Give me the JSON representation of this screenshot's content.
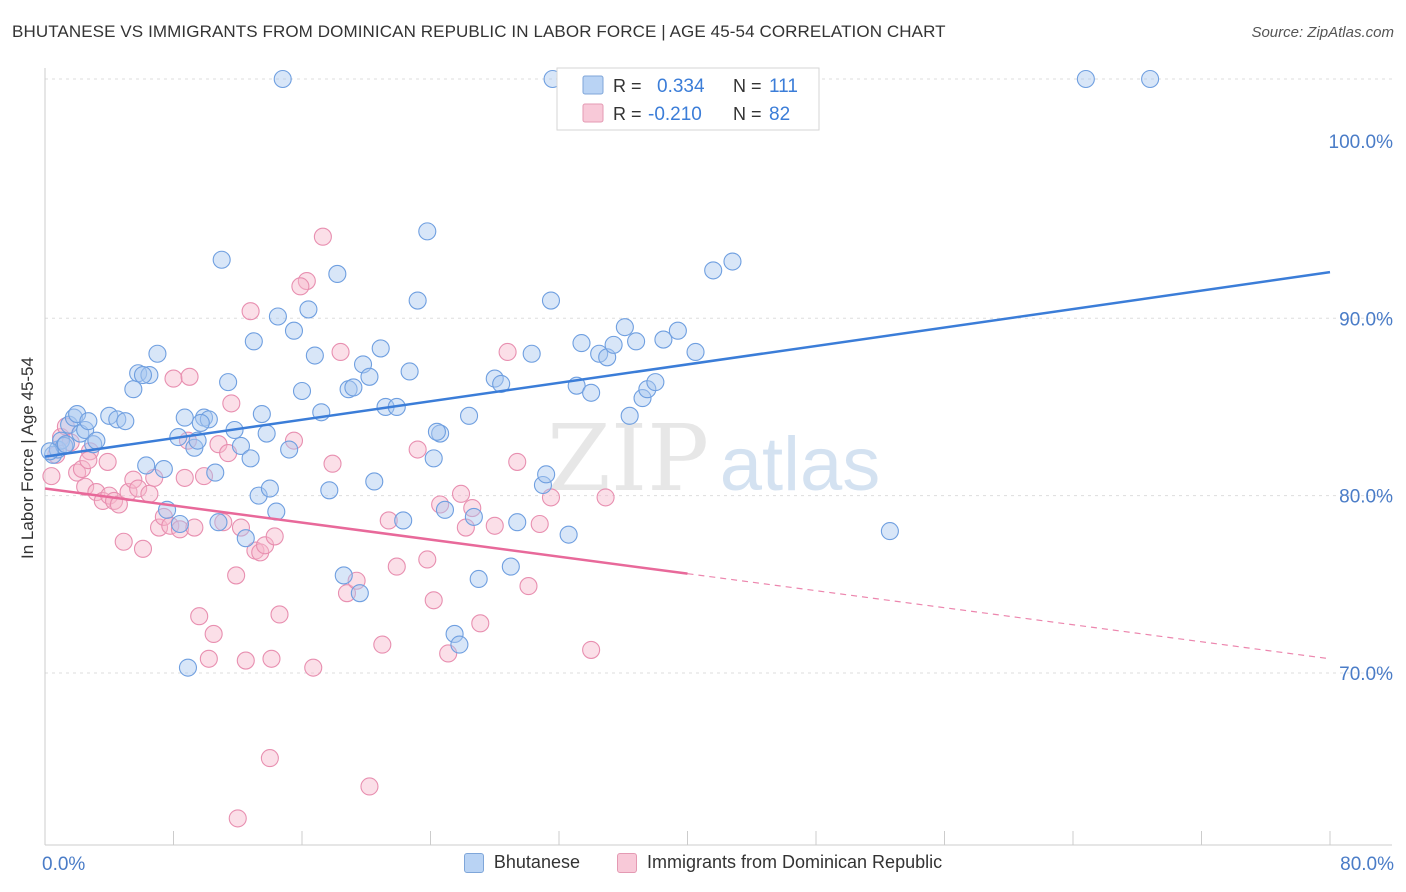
{
  "header": {
    "title": "BHUTANESE VS IMMIGRANTS FROM DOMINICAN REPUBLIC IN LABOR FORCE | AGE 45-54 CORRELATION CHART",
    "source": "Source: ZipAtlas.com"
  },
  "colors": {
    "blue": "#3b7dd8",
    "blue_fill": "#a9c8f0",
    "pink": "#e8699a",
    "pink_fill": "#f6b8cc",
    "axis_label": "#4a7cc7",
    "grid": "#dddddd"
  },
  "legend": {
    "rows": [
      {
        "r_label": "R =",
        "r_value": "0.334",
        "n_label": "N =",
        "n_value": "111",
        "color": "blue"
      },
      {
        "r_label": "R =",
        "r_value": "-0.210",
        "n_label": "N =",
        "n_value": "82",
        "color": "pink"
      }
    ]
  },
  "bottom_legend": [
    {
      "label": "Bhutanese",
      "color": "blue"
    },
    {
      "label": "Immigrants from Dominican Republic",
      "color": "pink"
    }
  ],
  "watermark": {
    "zip": "ZIP",
    "atlas": "atlas"
  },
  "chart_data": {
    "type": "scatter",
    "title": "BHUTANESE VS IMMIGRANTS FROM DOMINICAN REPUBLIC IN LABOR FORCE | AGE 45-54 CORRELATION CHART",
    "xlabel": "",
    "ylabel": "In Labor Force | Age 45-54",
    "xlim": [
      0,
      80
    ],
    "ylim": [
      60.3,
      104
    ],
    "x_tick_labels": [
      {
        "value": 0,
        "label": "0.0%"
      },
      {
        "value": 80,
        "label": "80.0%"
      }
    ],
    "y_tick_labels": [
      {
        "value": 70,
        "label": "70.0%"
      },
      {
        "value": 80,
        "label": "80.0%"
      },
      {
        "value": 90,
        "label": "90.0%"
      },
      {
        "value": 100,
        "label": "100.0%"
      }
    ],
    "grid": true,
    "legend_position": "top-center",
    "series": [
      {
        "name": "Bhutanese",
        "color": "blue",
        "r": 0.334,
        "n": 111,
        "trend": {
          "x0": 0,
          "y0": 82.2,
          "x1": 80,
          "y1": 92.6,
          "dashed_from": null
        },
        "points": [
          [
            0.5,
            82.3
          ],
          [
            0.8,
            82.6
          ],
          [
            1.0,
            83.1
          ],
          [
            1.2,
            82.8
          ],
          [
            1.3,
            82.9
          ],
          [
            1.5,
            84.0
          ],
          [
            1.8,
            84.4
          ],
          [
            2.0,
            84.6
          ],
          [
            2.2,
            83.5
          ],
          [
            2.5,
            83.7
          ],
          [
            2.7,
            84.2
          ],
          [
            3.0,
            82.9
          ],
          [
            3.2,
            83.1
          ],
          [
            4.0,
            84.5
          ],
          [
            4.5,
            84.3
          ],
          [
            5.0,
            84.2
          ],
          [
            5.5,
            86.0
          ],
          [
            5.8,
            86.9
          ],
          [
            6.5,
            86.8
          ],
          [
            7.0,
            88.0
          ],
          [
            6.3,
            81.7
          ],
          [
            7.4,
            81.5
          ],
          [
            7.6,
            79.2
          ],
          [
            8.3,
            83.3
          ],
          [
            8.4,
            78.4
          ],
          [
            8.7,
            84.4
          ],
          [
            8.9,
            70.3
          ],
          [
            9.3,
            82.7
          ],
          [
            9.5,
            83.1
          ],
          [
            9.9,
            84.4
          ],
          [
            10.2,
            84.3
          ],
          [
            10.6,
            81.3
          ],
          [
            10.8,
            78.5
          ],
          [
            11.0,
            93.3
          ],
          [
            11.4,
            86.4
          ],
          [
            11.8,
            83.7
          ],
          [
            12.2,
            82.8
          ],
          [
            12.5,
            77.6
          ],
          [
            12.8,
            82.1
          ],
          [
            13.0,
            88.7
          ],
          [
            13.3,
            80.0
          ],
          [
            13.5,
            84.6
          ],
          [
            14.0,
            80.4
          ],
          [
            14.4,
            79.1
          ],
          [
            14.5,
            90.1
          ],
          [
            14.8,
            100.6
          ],
          [
            15.2,
            82.6
          ],
          [
            15.5,
            89.3
          ],
          [
            16.0,
            85.9
          ],
          [
            16.4,
            90.5
          ],
          [
            16.8,
            87.9
          ],
          [
            17.2,
            84.7
          ],
          [
            17.7,
            80.3
          ],
          [
            18.2,
            92.5
          ],
          [
            18.6,
            75.5
          ],
          [
            18.9,
            86.0
          ],
          [
            19.2,
            86.1
          ],
          [
            19.6,
            74.5
          ],
          [
            19.8,
            87.4
          ],
          [
            20.2,
            86.7
          ],
          [
            20.5,
            80.8
          ],
          [
            20.9,
            88.3
          ],
          [
            21.2,
            85.0
          ],
          [
            21.9,
            85.0
          ],
          [
            22.3,
            78.6
          ],
          [
            22.7,
            87.0
          ],
          [
            23.2,
            91.0
          ],
          [
            23.8,
            94.9
          ],
          [
            24.2,
            82.1
          ],
          [
            24.6,
            83.5
          ],
          [
            24.9,
            79.2
          ],
          [
            25.5,
            72.2
          ],
          [
            25.8,
            71.6
          ],
          [
            26.4,
            84.5
          ],
          [
            26.7,
            78.8
          ],
          [
            27.0,
            75.3
          ],
          [
            28.0,
            86.6
          ],
          [
            28.4,
            86.3
          ],
          [
            29.0,
            76.0
          ],
          [
            29.4,
            78.5
          ],
          [
            30.3,
            88.0
          ],
          [
            31.0,
            80.6
          ],
          [
            31.2,
            81.2
          ],
          [
            31.5,
            91.0
          ],
          [
            32.6,
            77.8
          ],
          [
            33.1,
            86.2
          ],
          [
            33.4,
            88.6
          ],
          [
            34.0,
            85.8
          ],
          [
            34.5,
            88.0
          ],
          [
            35.0,
            87.8
          ],
          [
            35.4,
            88.5
          ],
          [
            36.1,
            89.5
          ],
          [
            36.4,
            84.5
          ],
          [
            36.8,
            88.7
          ],
          [
            37.2,
            85.5
          ],
          [
            37.5,
            86.0
          ],
          [
            38.0,
            86.4
          ],
          [
            38.5,
            88.8
          ],
          [
            39.4,
            89.3
          ],
          [
            40.5,
            88.1
          ],
          [
            41.6,
            92.7
          ],
          [
            42.8,
            93.2
          ],
          [
            52.6,
            78.0
          ],
          [
            31.6,
            100.6
          ],
          [
            64.8,
            100.6
          ],
          [
            68.8,
            100.6
          ],
          [
            6.1,
            86.8
          ],
          [
            9.7,
            84.1
          ],
          [
            13.8,
            83.5
          ],
          [
            24.4,
            83.6
          ],
          [
            0.3,
            82.5
          ]
        ]
      },
      {
        "name": "Immigrants from Dominican Republic",
        "color": "pink",
        "r": -0.21,
        "n": 82,
        "trend": {
          "x0": 0,
          "y0": 80.4,
          "x1": 80,
          "y1": 70.8,
          "dashed_from": 40
        },
        "points": [
          [
            0.4,
            81.1
          ],
          [
            0.7,
            82.3
          ],
          [
            1.0,
            83.3
          ],
          [
            1.3,
            83.9
          ],
          [
            1.6,
            83.0
          ],
          [
            2.0,
            81.3
          ],
          [
            2.3,
            81.5
          ],
          [
            2.5,
            80.5
          ],
          [
            2.8,
            82.5
          ],
          [
            3.2,
            80.2
          ],
          [
            3.6,
            79.7
          ],
          [
            4.0,
            80.0
          ],
          [
            4.3,
            79.7
          ],
          [
            4.6,
            79.5
          ],
          [
            4.9,
            77.4
          ],
          [
            5.2,
            80.2
          ],
          [
            5.5,
            80.9
          ],
          [
            5.8,
            80.4
          ],
          [
            6.1,
            77.0
          ],
          [
            6.5,
            80.1
          ],
          [
            6.8,
            81.0
          ],
          [
            7.1,
            78.2
          ],
          [
            7.4,
            78.8
          ],
          [
            7.8,
            78.3
          ],
          [
            8.0,
            86.6
          ],
          [
            8.4,
            78.1
          ],
          [
            8.7,
            81.0
          ],
          [
            9.0,
            86.7
          ],
          [
            9.3,
            78.2
          ],
          [
            9.6,
            73.2
          ],
          [
            9.9,
            81.1
          ],
          [
            10.2,
            70.8
          ],
          [
            10.5,
            72.2
          ],
          [
            10.8,
            82.9
          ],
          [
            11.1,
            78.5
          ],
          [
            11.4,
            82.4
          ],
          [
            11.6,
            85.2
          ],
          [
            11.9,
            75.5
          ],
          [
            12.2,
            78.2
          ],
          [
            12.5,
            70.7
          ],
          [
            12.8,
            90.4
          ],
          [
            13.1,
            76.9
          ],
          [
            13.4,
            76.8
          ],
          [
            13.7,
            77.2
          ],
          [
            14.0,
            65.2
          ],
          [
            14.3,
            77.7
          ],
          [
            14.6,
            73.3
          ],
          [
            14.1,
            70.8
          ],
          [
            15.5,
            83.1
          ],
          [
            16.3,
            92.1
          ],
          [
            16.7,
            70.3
          ],
          [
            17.3,
            94.6
          ],
          [
            17.9,
            81.8
          ],
          [
            18.4,
            88.1
          ],
          [
            18.8,
            74.5
          ],
          [
            19.4,
            75.2
          ],
          [
            20.2,
            63.6
          ],
          [
            21.0,
            71.6
          ],
          [
            21.4,
            78.6
          ],
          [
            21.9,
            76.0
          ],
          [
            23.2,
            82.6
          ],
          [
            23.8,
            76.4
          ],
          [
            24.2,
            74.1
          ],
          [
            24.6,
            79.5
          ],
          [
            25.1,
            71.1
          ],
          [
            25.9,
            80.1
          ],
          [
            26.2,
            78.2
          ],
          [
            26.6,
            79.3
          ],
          [
            27.1,
            72.8
          ],
          [
            28.0,
            78.3
          ],
          [
            28.8,
            88.1
          ],
          [
            29.4,
            81.9
          ],
          [
            30.1,
            74.9
          ],
          [
            30.8,
            78.4
          ],
          [
            31.5,
            79.9
          ],
          [
            34.0,
            71.3
          ],
          [
            34.9,
            79.9
          ],
          [
            12.0,
            61.8
          ],
          [
            15.9,
            91.8
          ],
          [
            2.7,
            82.0
          ],
          [
            8.9,
            83.1
          ],
          [
            3.9,
            81.9
          ]
        ]
      }
    ]
  }
}
